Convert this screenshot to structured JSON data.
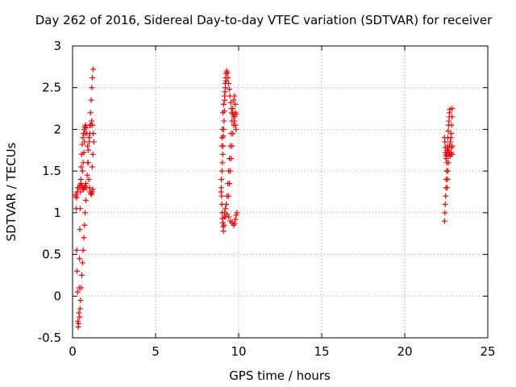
{
  "chart_data": {
    "type": "scatter",
    "title": "Day 262 of 2016, Sidereal Day-to-day VTEC variation (SDTVAR) for receiver",
    "xlabel": "GPS time / hours",
    "ylabel": "SDTVAR / TECUs",
    "xlim": [
      0,
      25
    ],
    "ylim": [
      -0.5,
      3
    ],
    "xticks": [
      "0",
      "5",
      "10",
      "15",
      "20",
      "25"
    ],
    "yticks": [
      "-0.5",
      "0",
      "0.5",
      "1",
      "1.5",
      "2",
      "2.5",
      "3"
    ],
    "grid": true,
    "marker": "+",
    "color": "#ff0000",
    "series": [
      {
        "points": [
          [
            0.2,
            1.2
          ],
          [
            0.22,
            1.05
          ],
          [
            0.25,
            0.55
          ],
          [
            0.27,
            0.3
          ],
          [
            0.3,
            0.05
          ],
          [
            0.32,
            -0.3
          ],
          [
            0.34,
            -0.37
          ],
          [
            0.36,
            -0.33
          ],
          [
            0.38,
            -0.2
          ],
          [
            0.4,
            0.1
          ],
          [
            0.42,
            0.45
          ],
          [
            0.44,
            0.8
          ],
          [
            0.46,
            1.05
          ],
          [
            0.48,
            1.25
          ],
          [
            0.5,
            1.4
          ],
          [
            0.52,
            1.55
          ],
          [
            0.55,
            1.7
          ],
          [
            0.58,
            1.82
          ],
          [
            0.62,
            1.9
          ],
          [
            0.66,
            1.95
          ],
          [
            0.7,
            2.0
          ],
          [
            0.74,
            2.03
          ],
          [
            0.78,
            2.05
          ],
          [
            0.82,
            2.02
          ],
          [
            0.86,
            1.95
          ],
          [
            0.9,
            1.8
          ],
          [
            0.94,
            1.6
          ],
          [
            0.98,
            1.4
          ],
          [
            1.02,
            1.3
          ],
          [
            1.06,
            1.25
          ],
          [
            1.1,
            1.23
          ],
          [
            1.14,
            1.22
          ],
          [
            1.18,
            1.25
          ],
          [
            1.22,
            1.28
          ],
          [
            0.21,
            1.22
          ],
          [
            0.24,
            1.18
          ],
          [
            0.28,
            1.25
          ],
          [
            0.31,
            1.3
          ],
          [
            0.4,
            1.3
          ],
          [
            0.45,
            1.33
          ],
          [
            0.5,
            1.35
          ],
          [
            0.55,
            1.32
          ],
          [
            0.6,
            1.3
          ],
          [
            0.65,
            1.28
          ],
          [
            0.7,
            1.3
          ],
          [
            0.75,
            1.32
          ],
          [
            0.8,
            1.35
          ],
          [
            0.42,
            -0.25
          ],
          [
            0.45,
            -0.15
          ],
          [
            0.48,
            -0.05
          ],
          [
            0.52,
            0.1
          ],
          [
            0.56,
            0.25
          ],
          [
            0.6,
            0.4
          ],
          [
            0.64,
            0.55
          ],
          [
            0.68,
            0.7
          ],
          [
            0.72,
            0.85
          ],
          [
            0.76,
            1.0
          ],
          [
            0.8,
            1.15
          ],
          [
            0.84,
            1.3
          ],
          [
            0.88,
            1.45
          ],
          [
            0.92,
            1.6
          ],
          [
            0.96,
            1.75
          ],
          [
            1.0,
            1.9
          ],
          [
            1.04,
            2.05
          ],
          [
            1.08,
            2.2
          ],
          [
            1.12,
            2.35
          ],
          [
            1.16,
            2.5
          ],
          [
            1.2,
            2.62
          ],
          [
            1.24,
            2.72
          ],
          [
            0.6,
            1.5
          ],
          [
            0.64,
            1.6
          ],
          [
            0.68,
            1.72
          ],
          [
            0.72,
            1.85
          ],
          [
            0.76,
            1.95
          ],
          [
            1.0,
            1.85
          ],
          [
            1.05,
            1.95
          ],
          [
            1.1,
            2.05
          ],
          [
            1.15,
            2.1
          ],
          [
            1.2,
            2.05
          ],
          [
            1.25,
            1.95
          ],
          [
            1.28,
            1.85
          ],
          [
            1.22,
            1.7
          ],
          [
            1.18,
            1.55
          ]
        ]
      },
      {
        "points": [
          [
            8.95,
            1.3
          ],
          [
            8.97,
            1.2
          ],
          [
            8.99,
            1.1
          ],
          [
            9.01,
            1.0
          ],
          [
            9.03,
            0.93
          ],
          [
            9.05,
            0.88
          ],
          [
            9.07,
            0.83
          ],
          [
            9.09,
            0.78
          ],
          [
            9.11,
            0.85
          ],
          [
            9.13,
            0.95
          ],
          [
            9.0,
            1.5
          ],
          [
            9.02,
            1.6
          ],
          [
            9.04,
            1.7
          ],
          [
            9.06,
            1.8
          ],
          [
            9.08,
            1.92
          ],
          [
            9.1,
            2.0
          ],
          [
            9.12,
            2.1
          ],
          [
            9.14,
            2.22
          ],
          [
            9.16,
            2.35
          ],
          [
            9.18,
            2.45
          ],
          [
            9.2,
            2.55
          ],
          [
            9.22,
            2.62
          ],
          [
            9.25,
            2.67
          ],
          [
            9.28,
            2.7
          ],
          [
            9.32,
            2.68
          ],
          [
            9.36,
            2.62
          ],
          [
            9.4,
            2.55
          ],
          [
            9.44,
            2.48
          ],
          [
            9.48,
            2.4
          ],
          [
            9.52,
            2.32
          ],
          [
            9.56,
            2.25
          ],
          [
            9.6,
            2.2
          ],
          [
            9.65,
            2.18
          ],
          [
            9.7,
            2.15
          ],
          [
            9.75,
            2.1
          ],
          [
            9.8,
            2.05
          ],
          [
            9.85,
            2.0
          ],
          [
            9.15,
            1.0
          ],
          [
            9.2,
            1.05
          ],
          [
            9.25,
            1.1
          ],
          [
            9.3,
            1.2
          ],
          [
            9.35,
            1.35
          ],
          [
            9.4,
            1.5
          ],
          [
            9.45,
            1.65
          ],
          [
            9.5,
            1.8
          ],
          [
            9.55,
            1.95
          ],
          [
            9.6,
            2.1
          ],
          [
            9.65,
            2.25
          ],
          [
            9.7,
            2.35
          ],
          [
            9.75,
            2.4
          ],
          [
            9.8,
            2.3
          ],
          [
            9.85,
            2.18
          ],
          [
            9.2,
            0.95
          ],
          [
            9.3,
            0.98
          ],
          [
            9.4,
            0.95
          ],
          [
            9.5,
            0.9
          ],
          [
            9.6,
            0.88
          ],
          [
            9.7,
            0.85
          ],
          [
            9.75,
            0.87
          ],
          [
            9.8,
            0.92
          ],
          [
            9.85,
            0.97
          ],
          [
            9.9,
            1.0
          ],
          [
            9.4,
            1.2
          ],
          [
            9.45,
            1.35
          ],
          [
            9.5,
            1.5
          ],
          [
            9.55,
            1.65
          ],
          [
            9.6,
            1.8
          ],
          [
            9.65,
            1.95
          ],
          [
            9.7,
            2.05
          ],
          [
            9.75,
            2.15
          ],
          [
            9.8,
            2.2
          ],
          [
            9.05,
            2.2
          ],
          [
            9.1,
            2.3
          ],
          [
            9.15,
            2.4
          ],
          [
            9.2,
            2.5
          ],
          [
            9.25,
            2.58
          ],
          [
            8.98,
            1.8
          ],
          [
            9.0,
            1.9
          ],
          [
            9.02,
            2.0
          ],
          [
            8.96,
            1.4
          ],
          [
            8.94,
            1.25
          ]
        ]
      },
      {
        "points": [
          [
            22.4,
            0.9
          ],
          [
            22.42,
            1.0
          ],
          [
            22.44,
            1.1
          ],
          [
            22.46,
            1.2
          ],
          [
            22.48,
            1.3
          ],
          [
            22.5,
            1.4
          ],
          [
            22.52,
            1.5
          ],
          [
            22.54,
            1.6
          ],
          [
            22.56,
            1.7
          ],
          [
            22.58,
            1.8
          ],
          [
            22.6,
            1.9
          ],
          [
            22.62,
            1.98
          ],
          [
            22.64,
            2.05
          ],
          [
            22.66,
            2.1
          ],
          [
            22.68,
            2.15
          ],
          [
            22.7,
            2.2
          ],
          [
            22.72,
            2.24
          ],
          [
            22.4,
            1.9
          ],
          [
            22.42,
            1.85
          ],
          [
            22.44,
            1.78
          ],
          [
            22.46,
            1.72
          ],
          [
            22.48,
            1.68
          ],
          [
            22.5,
            1.65
          ],
          [
            22.52,
            1.7
          ],
          [
            22.55,
            1.75
          ],
          [
            22.58,
            1.78
          ],
          [
            22.62,
            1.75
          ],
          [
            22.66,
            1.72
          ],
          [
            22.7,
            1.7
          ],
          [
            22.74,
            1.68
          ],
          [
            22.78,
            1.72
          ],
          [
            22.82,
            1.78
          ],
          [
            22.85,
            1.8
          ],
          [
            22.86,
            1.7
          ],
          [
            22.55,
            1.3
          ],
          [
            22.58,
            1.4
          ],
          [
            22.6,
            1.5
          ],
          [
            22.63,
            1.6
          ],
          [
            22.66,
            1.7
          ],
          [
            22.7,
            1.8
          ],
          [
            22.74,
            1.85
          ],
          [
            22.78,
            1.9
          ],
          [
            22.8,
            1.95
          ],
          [
            22.82,
            2.05
          ],
          [
            22.84,
            2.15
          ],
          [
            22.86,
            2.25
          ]
        ]
      }
    ]
  }
}
